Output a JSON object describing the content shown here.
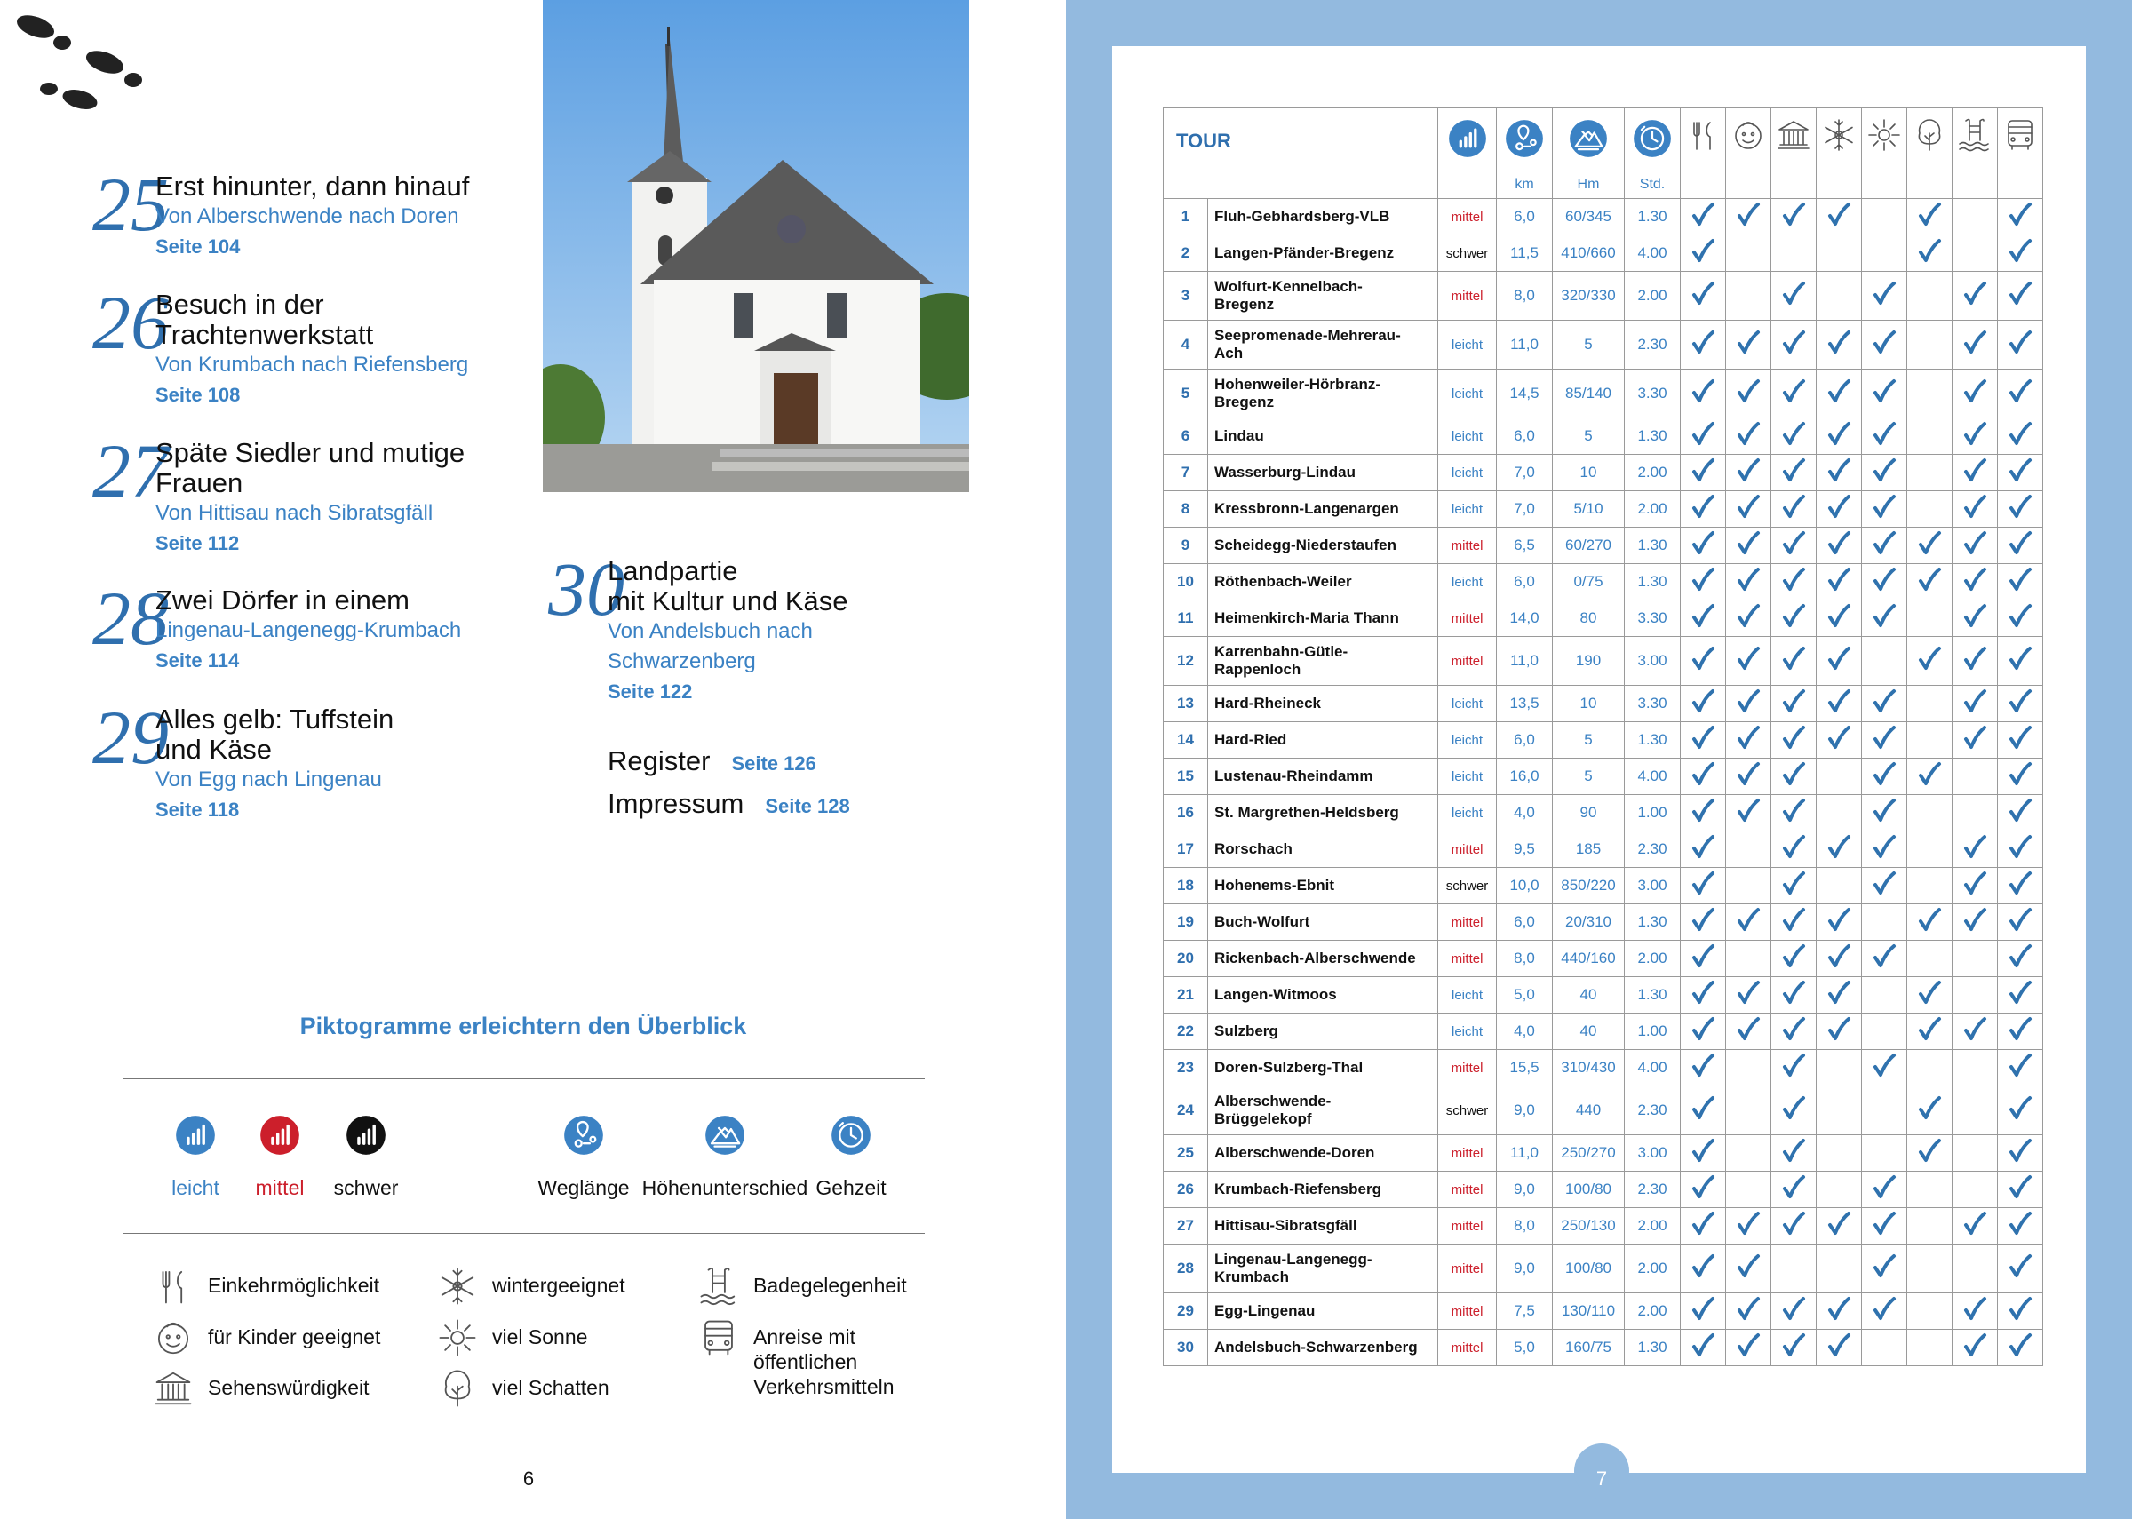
{
  "left_page": {
    "toc": [
      {
        "number": 25,
        "title_lines": [
          "Erst hinunter, dann hinauf"
        ],
        "subtitle_lines": [
          "Von Alberschwende nach Doren"
        ],
        "page": "Seite 104"
      },
      {
        "number": 26,
        "title_lines": [
          "Besuch in der",
          "Trachtenwerkstatt"
        ],
        "subtitle_lines": [
          "Von Krumbach nach Riefensberg"
        ],
        "page": "Seite 108"
      },
      {
        "number": 27,
        "title_lines": [
          "Späte Siedler und mutige",
          "Frauen"
        ],
        "subtitle_lines": [
          "Von Hittisau nach Sibratsgfäll"
        ],
        "page": "Seite 112"
      },
      {
        "number": 28,
        "title_lines": [
          "Zwei Dörfer in einem"
        ],
        "subtitle_lines": [
          "Lingenau-Langenegg-Krumbach"
        ],
        "page": "Seite 114"
      },
      {
        "number": 29,
        "title_lines": [
          "Alles gelb: Tuffstein",
          "und Käse"
        ],
        "subtitle_lines": [
          "Von Egg nach Lingenau"
        ],
        "page": "Seite 118"
      },
      {
        "number": 30,
        "title_lines": [
          "Landpartie",
          "mit Kultur und Käse"
        ],
        "subtitle_lines": [
          "Von Andelsbuch nach",
          "Schwarzenberg"
        ],
        "page": "Seite 122"
      }
    ],
    "extras": [
      {
        "title": "Register",
        "page": "Seite 126"
      },
      {
        "title": "Impressum",
        "page": "Seite 128"
      }
    ],
    "page_number": 6
  },
  "legend": {
    "title": "Piktogramme erleichtern den Überblick",
    "difficulty": [
      {
        "label": "leicht",
        "color": "#3b82c4"
      },
      {
        "label": "mittel",
        "color": "#cc1f2b"
      },
      {
        "label": "schwer",
        "color": "#111111"
      }
    ],
    "measures": [
      "Weglänge",
      "Höhenunterschied",
      "Gehzeit"
    ],
    "features": [
      {
        "icon": "food",
        "lines": [
          "Einkehrmöglichkeit"
        ]
      },
      {
        "icon": "kids",
        "lines": [
          "für Kinder geeignet"
        ]
      },
      {
        "icon": "sight",
        "lines": [
          "Sehenswürdigkeit"
        ]
      },
      {
        "icon": "winter",
        "lines": [
          "wintergeeignet"
        ]
      },
      {
        "icon": "sun",
        "lines": [
          "viel Sonne"
        ]
      },
      {
        "icon": "shade",
        "lines": [
          "viel Schatten"
        ]
      },
      {
        "icon": "bath",
        "lines": [
          "Badegelegenheit"
        ]
      },
      {
        "icon": "bus",
        "lines": [
          "Anreise mit",
          "öffentlichen",
          "Verkehrsmitteln"
        ]
      }
    ]
  },
  "table": {
    "header": "TOUR",
    "units": [
      "km",
      "Hm",
      "Std."
    ],
    "feature_icons": [
      "food",
      "kids",
      "sight",
      "winter",
      "sun",
      "shade",
      "bath",
      "bus"
    ],
    "check_color": "#2f72ae",
    "rows": [
      {
        "number": 1,
        "name_lines": [
          "Fluh-Gebhardsberg-VLB"
        ],
        "difficulty": "mittel",
        "km": "6,0",
        "hm": "60/345",
        "time": "1.30",
        "features": [
          true,
          true,
          true,
          true,
          false,
          true,
          false,
          true
        ]
      },
      {
        "number": 2,
        "name_lines": [
          "Langen-Pfänder-Bregenz"
        ],
        "difficulty": "schwer",
        "km": "11,5",
        "hm": "410/660",
        "time": "4.00",
        "features": [
          true,
          false,
          false,
          false,
          false,
          true,
          false,
          true
        ]
      },
      {
        "number": 3,
        "name_lines": [
          "Wolfurt-Kennelbach-",
          "Bregenz"
        ],
        "difficulty": "mittel",
        "km": "8,0",
        "hm": "320/330",
        "time": "2.00",
        "features": [
          true,
          false,
          true,
          false,
          true,
          false,
          true,
          true
        ]
      },
      {
        "number": 4,
        "name_lines": [
          "Seepromenade-Mehrerau-",
          "Ach"
        ],
        "difficulty": "leicht",
        "km": "11,0",
        "hm": "5",
        "time": "2.30",
        "features": [
          true,
          true,
          true,
          true,
          true,
          false,
          true,
          true
        ]
      },
      {
        "number": 5,
        "name_lines": [
          "Hohenweiler-Hörbranz-",
          "Bregenz"
        ],
        "difficulty": "leicht",
        "km": "14,5",
        "hm": "85/140",
        "time": "3.30",
        "features": [
          true,
          true,
          true,
          true,
          true,
          false,
          true,
          true
        ]
      },
      {
        "number": 6,
        "name_lines": [
          "Lindau"
        ],
        "difficulty": "leicht",
        "km": "6,0",
        "hm": "5",
        "time": "1.30",
        "features": [
          true,
          true,
          true,
          true,
          true,
          false,
          true,
          true
        ]
      },
      {
        "number": 7,
        "name_lines": [
          "Wasserburg-Lindau"
        ],
        "difficulty": "leicht",
        "km": "7,0",
        "hm": "10",
        "time": "2.00",
        "features": [
          true,
          true,
          true,
          true,
          true,
          false,
          true,
          true
        ]
      },
      {
        "number": 8,
        "name_lines": [
          "Kressbronn-Langenargen"
        ],
        "difficulty": "leicht",
        "km": "7,0",
        "hm": "5/10",
        "time": "2.00",
        "features": [
          true,
          true,
          true,
          true,
          true,
          false,
          true,
          true
        ]
      },
      {
        "number": 9,
        "name_lines": [
          "Scheidegg-Niederstaufen"
        ],
        "difficulty": "mittel",
        "km": "6,5",
        "hm": "60/270",
        "time": "1.30",
        "features": [
          true,
          true,
          true,
          true,
          true,
          true,
          true,
          true
        ]
      },
      {
        "number": 10,
        "name_lines": [
          "Röthenbach-Weiler"
        ],
        "difficulty": "leicht",
        "km": "6,0",
        "hm": "0/75",
        "time": "1.30",
        "features": [
          true,
          true,
          true,
          true,
          true,
          true,
          true,
          true
        ]
      },
      {
        "number": 11,
        "name_lines": [
          "Heimenkirch-Maria Thann"
        ],
        "difficulty": "mittel",
        "km": "14,0",
        "hm": "80",
        "time": "3.30",
        "features": [
          true,
          true,
          true,
          true,
          true,
          false,
          true,
          true
        ]
      },
      {
        "number": 12,
        "name_lines": [
          "Karrenbahn-Gütle-",
          "Rappenloch"
        ],
        "difficulty": "mittel",
        "km": "11,0",
        "hm": "190",
        "time": "3.00",
        "features": [
          true,
          true,
          true,
          true,
          false,
          true,
          true,
          true
        ]
      },
      {
        "number": 13,
        "name_lines": [
          "Hard-Rheineck"
        ],
        "difficulty": "leicht",
        "km": "13,5",
        "hm": "10",
        "time": "3.30",
        "features": [
          true,
          true,
          true,
          true,
          true,
          false,
          true,
          true
        ]
      },
      {
        "number": 14,
        "name_lines": [
          "Hard-Ried"
        ],
        "difficulty": "leicht",
        "km": "6,0",
        "hm": "5",
        "time": "1.30",
        "features": [
          true,
          true,
          true,
          true,
          true,
          false,
          true,
          true
        ]
      },
      {
        "number": 15,
        "name_lines": [
          "Lustenau-Rheindamm"
        ],
        "difficulty": "leicht",
        "km": "16,0",
        "hm": "5",
        "time": "4.00",
        "features": [
          true,
          true,
          true,
          false,
          true,
          true,
          false,
          true
        ]
      },
      {
        "number": 16,
        "name_lines": [
          "St. Margrethen-Heldsberg"
        ],
        "difficulty": "leicht",
        "km": "4,0",
        "hm": "90",
        "time": "1.00",
        "features": [
          true,
          true,
          true,
          false,
          true,
          false,
          false,
          true
        ]
      },
      {
        "number": 17,
        "name_lines": [
          "Rorschach"
        ],
        "difficulty": "mittel",
        "km": "9,5",
        "hm": "185",
        "time": "2.30",
        "features": [
          true,
          false,
          true,
          true,
          true,
          false,
          true,
          true
        ]
      },
      {
        "number": 18,
        "name_lines": [
          "Hohenems-Ebnit"
        ],
        "difficulty": "schwer",
        "km": "10,0",
        "hm": "850/220",
        "time": "3.00",
        "features": [
          true,
          false,
          true,
          false,
          true,
          false,
          true,
          true
        ]
      },
      {
        "number": 19,
        "name_lines": [
          "Buch-Wolfurt"
        ],
        "difficulty": "mittel",
        "km": "6,0",
        "hm": "20/310",
        "time": "1.30",
        "features": [
          true,
          true,
          true,
          true,
          false,
          true,
          true,
          true
        ]
      },
      {
        "number": 20,
        "name_lines": [
          "Rickenbach-Alberschwende"
        ],
        "difficulty": "mittel",
        "km": "8,0",
        "hm": "440/160",
        "time": "2.00",
        "features": [
          true,
          false,
          true,
          true,
          true,
          false,
          false,
          true
        ]
      },
      {
        "number": 21,
        "name_lines": [
          "Langen-Witmoos"
        ],
        "difficulty": "leicht",
        "km": "5,0",
        "hm": "40",
        "time": "1.30",
        "features": [
          true,
          true,
          true,
          true,
          false,
          true,
          false,
          true
        ]
      },
      {
        "number": 22,
        "name_lines": [
          "Sulzberg"
        ],
        "difficulty": "leicht",
        "km": "4,0",
        "hm": "40",
        "time": "1.00",
        "features": [
          true,
          true,
          true,
          true,
          false,
          true,
          true,
          true
        ]
      },
      {
        "number": 23,
        "name_lines": [
          "Doren-Sulzberg-Thal"
        ],
        "difficulty": "mittel",
        "km": "15,5",
        "hm": "310/430",
        "time": "4.00",
        "features": [
          true,
          false,
          true,
          false,
          true,
          false,
          false,
          true
        ]
      },
      {
        "number": 24,
        "name_lines": [
          "Alberschwende-",
          "Brüggelekopf"
        ],
        "difficulty": "schwer",
        "km": "9,0",
        "hm": "440",
        "time": "2.30",
        "features": [
          true,
          false,
          true,
          false,
          false,
          true,
          false,
          true
        ]
      },
      {
        "number": 25,
        "name_lines": [
          "Alberschwende-Doren"
        ],
        "difficulty": "mittel",
        "km": "11,0",
        "hm": "250/270",
        "time": "3.00",
        "features": [
          true,
          false,
          true,
          false,
          false,
          true,
          false,
          true
        ]
      },
      {
        "number": 26,
        "name_lines": [
          "Krumbach-Riefensberg"
        ],
        "difficulty": "mittel",
        "km": "9,0",
        "hm": "100/80",
        "time": "2.30",
        "features": [
          true,
          false,
          true,
          false,
          true,
          false,
          false,
          true
        ]
      },
      {
        "number": 27,
        "name_lines": [
          "Hittisau-Sibratsgfäll"
        ],
        "difficulty": "mittel",
        "km": "8,0",
        "hm": "250/130",
        "time": "2.00",
        "features": [
          true,
          true,
          true,
          true,
          true,
          false,
          true,
          true
        ]
      },
      {
        "number": 28,
        "name_lines": [
          "Lingenau-Langenegg-",
          "Krumbach"
        ],
        "difficulty": "mittel",
        "km": "9,0",
        "hm": "100/80",
        "time": "2.00",
        "features": [
          true,
          true,
          false,
          false,
          true,
          false,
          false,
          true
        ]
      },
      {
        "number": 29,
        "name_lines": [
          "Egg-Lingenau"
        ],
        "difficulty": "mittel",
        "km": "7,5",
        "hm": "130/110",
        "time": "2.00",
        "features": [
          true,
          true,
          true,
          true,
          true,
          false,
          true,
          true
        ]
      },
      {
        "number": 30,
        "name_lines": [
          "Andelsbuch-Schwarzenberg"
        ],
        "difficulty": "mittel",
        "km": "5,0",
        "hm": "160/75",
        "time": "1.30",
        "features": [
          true,
          true,
          true,
          true,
          false,
          false,
          true,
          true
        ]
      }
    ],
    "page_number": 7
  }
}
